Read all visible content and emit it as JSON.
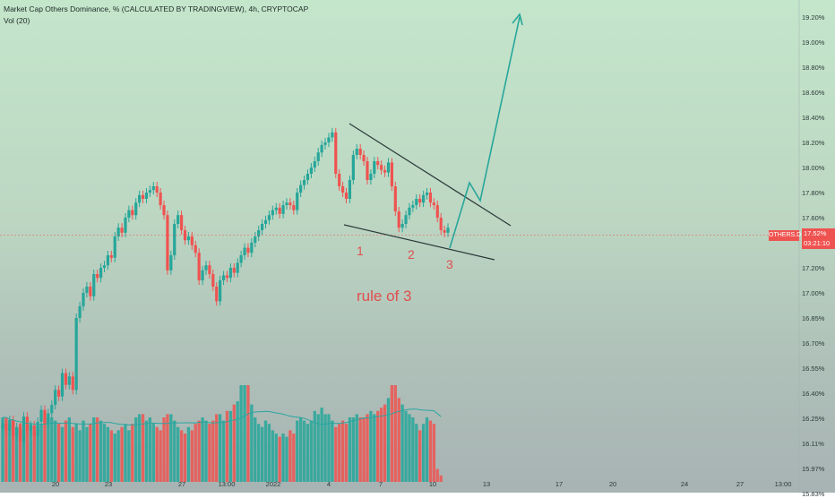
{
  "legend": {
    "title": "Market Cap Others Dominance, % (CALCULATED BY TRADINGVIEW), 4h, CRYPTOCAP",
    "indicator": "Vol (20)"
  },
  "price_axis": [
    "19.20%",
    "19.00%",
    "18.80%",
    "18.60%",
    "18.40%",
    "18.20%",
    "18.00%",
    "17.80%",
    "17.60%",
    "17.40%",
    "17.20%",
    "17.00%",
    "16.85%",
    "16.70%",
    "16.55%",
    "16.40%",
    "16.25%",
    "16.11%",
    "15.97%",
    "15.83%"
  ],
  "time_axis": [
    "20",
    "23",
    "27",
    "13:00",
    "2022",
    "4",
    "7",
    "10",
    "13",
    "17",
    "20",
    "24",
    "27",
    "13:00"
  ],
  "symbol_tag": "OTHERS.D",
  "last_price": "17.52%",
  "countdown": "03:21:10",
  "annotations": {
    "one": "1",
    "two": "2",
    "three": "3",
    "rule": "rule of 3"
  },
  "colors": {
    "up": "#26a69a",
    "down": "#ef5350",
    "ma": "#2aa6a0",
    "trend": "#2b3a3a",
    "arrow": "#26a69a",
    "annotation": "#e04f4f"
  },
  "chart_data": {
    "type": "candlestick",
    "symbol": "OTHERS.D",
    "timeframe": "4h",
    "ylim": [
      15.83,
      19.2
    ],
    "close_series": [
      16.22,
      16.18,
      16.24,
      16.15,
      16.2,
      16.12,
      16.26,
      16.18,
      16.21,
      16.15,
      16.23,
      16.3,
      16.22,
      16.28,
      16.33,
      16.42,
      16.38,
      16.52,
      16.45,
      16.5,
      16.42,
      16.85,
      16.92,
      17.0,
      17.05,
      16.98,
      17.15,
      17.12,
      17.2,
      17.22,
      17.3,
      17.28,
      17.45,
      17.52,
      17.48,
      17.6,
      17.66,
      17.62,
      17.72,
      17.78,
      17.75,
      17.8,
      17.82,
      17.85,
      17.8,
      17.7,
      17.62,
      17.18,
      17.3,
      17.55,
      17.62,
      17.5,
      17.42,
      17.45,
      17.38,
      17.32,
      17.1,
      17.18,
      17.22,
      17.15,
      17.05,
      16.95,
      17.1,
      17.14,
      17.12,
      17.2,
      17.16,
      17.24,
      17.3,
      17.36,
      17.32,
      17.4,
      17.45,
      17.5,
      17.55,
      17.58,
      17.62,
      17.66,
      17.68,
      17.63,
      17.7,
      17.72,
      17.7,
      17.66,
      17.8,
      17.86,
      17.9,
      17.95,
      18.0,
      18.05,
      18.12,
      18.18,
      18.2,
      18.24,
      18.28,
      17.95,
      17.85,
      17.8,
      17.75,
      17.9,
      18.1,
      18.15,
      18.1,
      18.05,
      17.9,
      17.95,
      18.05,
      18.02,
      17.98,
      17.96,
      18.04,
      17.85,
      17.65,
      17.52,
      17.55,
      17.62,
      17.68,
      17.7,
      17.75,
      17.72,
      17.78,
      17.8,
      17.72,
      17.7,
      17.6,
      17.5,
      17.48,
      17.52
    ],
    "volume_series": [
      1.0,
      1.0,
      0.9,
      0.95,
      0.85,
      0.9,
      0.8,
      0.85,
      0.9,
      0.8,
      0.85,
      0.9,
      0.95,
      1.0,
      1.0,
      0.95,
      0.9,
      0.85,
      0.95,
      1.0,
      0.85,
      0.9,
      0.8,
      0.95,
      0.85,
      0.9,
      1.0,
      1.0,
      0.95,
      0.9,
      0.85,
      0.8,
      0.75,
      0.8,
      0.85,
      0.9,
      0.8,
      0.9,
      1.0,
      1.05,
      1.05,
      0.95,
      1.0,
      0.9,
      0.85,
      0.8,
      1.0,
      1.05,
      1.05,
      0.95,
      0.85,
      0.8,
      0.75,
      0.85,
      0.8,
      0.9,
      0.95,
      1.0,
      0.95,
      0.9,
      0.95,
      1.05,
      1.05,
      0.95,
      1.1,
      1.1,
      1.2,
      1.25,
      1.5,
      1.5,
      1.5,
      1.2,
      1.0,
      0.9,
      0.85,
      0.95,
      0.9,
      0.8,
      0.75,
      0.7,
      0.75,
      0.7,
      0.8,
      0.75,
      0.95,
      1.0,
      0.95,
      0.9,
      0.95,
      1.1,
      1.05,
      1.15,
      1.05,
      1.05,
      0.95,
      0.85,
      0.9,
      0.95,
      0.9,
      1.0,
      1.0,
      1.05,
      1.0,
      1.0,
      1.05,
      1.1,
      1.05,
      1.1,
      1.15,
      1.2,
      1.3,
      1.5,
      1.5,
      1.3,
      1.2,
      1.1,
      1.05,
      1.0,
      0.9,
      0.8,
      0.9,
      1.0,
      0.95,
      0.9,
      0.2,
      0.1
    ],
    "title": "Market Cap Others Dominance, % (CALCULATED BY TRADINGVIEW), 4h, CRYPTOCAP",
    "legend": [
      "Vol (20)"
    ],
    "grid": false
  }
}
